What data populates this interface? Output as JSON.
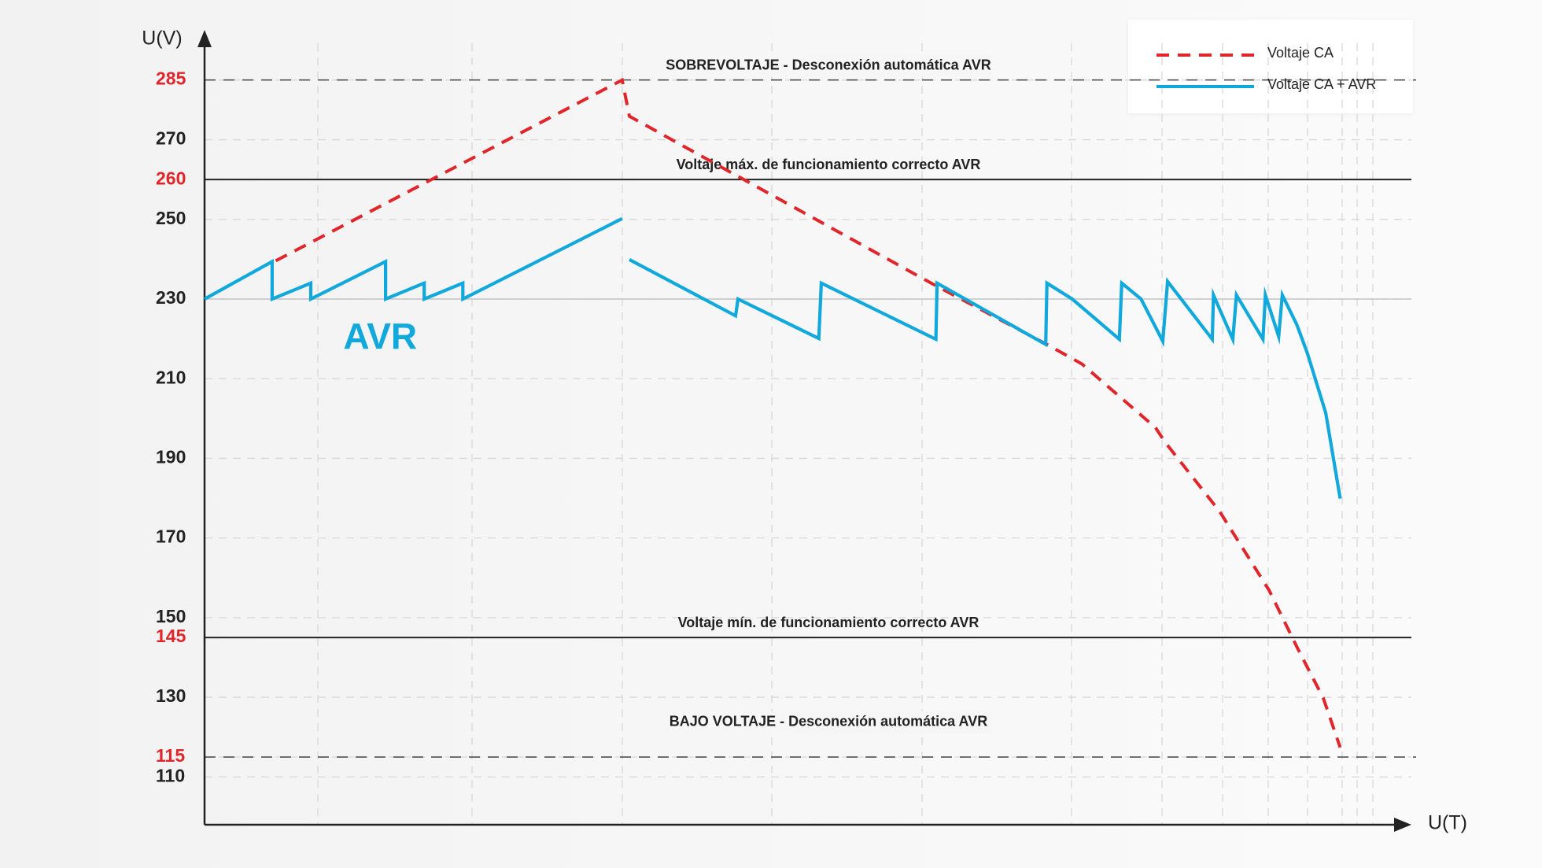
{
  "chart_data": {
    "type": "line",
    "y_axis_label": "U(V)",
    "x_axis_label": "U(T)",
    "xlim": [
      0,
      100
    ],
    "ylim": [
      98,
      296
    ],
    "yticks": [
      110,
      115,
      130,
      145,
      150,
      170,
      190,
      210,
      230,
      250,
      260,
      270,
      285
    ],
    "highlighted_yticks": [
      115,
      145,
      260,
      285
    ],
    "tick_color": "#222222",
    "highlight_tick_color": "#e0262b",
    "grid": true,
    "legend_position": "top-right",
    "annotation": {
      "text": "AVR",
      "x": 11.5,
      "y": 220,
      "color": "#11a9dc"
    },
    "reference_lines": [
      {
        "value": 285,
        "style": "dashed",
        "label": "SOBREVOLTAJE - Desconexión automática AVR"
      },
      {
        "value": 260,
        "style": "solid",
        "label": "Voltaje máx. de funcionamiento correcto AVR"
      },
      {
        "value": 230,
        "style": "light"
      },
      {
        "value": 145,
        "style": "solid",
        "label": "Voltaje mín. de funcionamiento correcto AVR"
      },
      {
        "value": 115,
        "style": "dashed",
        "label": "BAJO VOLTAJE - Desconexión automática AVR"
      }
    ],
    "series": [
      {
        "name": "Voltaje CA",
        "color": "#e0262b",
        "dashed": true,
        "x": [
          5.9,
          34.6,
          35.2,
          60.5,
          69.8,
          72.7,
          78.8,
          79.6,
          84.1,
          88.2,
          90.6,
          92.7,
          94.1
        ],
        "values": [
          239.6,
          285,
          275.9,
          233.5,
          218.6,
          213.7,
          197.7,
          194,
          176.7,
          156.9,
          142.1,
          129.8,
          117.4
        ]
      },
      {
        "name": "Voltaje CA + AVR",
        "color": "#11a9dc",
        "dashed": false,
        "x": [
          0,
          5.6,
          5.6,
          8.8,
          8.8,
          15,
          15,
          18.2,
          18.2,
          21.4,
          21.4,
          34.6,
          34.9,
          35.2,
          44,
          44.2,
          50.9,
          51.1,
          60.6,
          60.7,
          69.7,
          69.8,
          71.9,
          75.8,
          76,
          77.6,
          79.4,
          79.8,
          83.5,
          83.6,
          85.2,
          85.5,
          87.7,
          87.9,
          89,
          89.3,
          90.5,
          91.4,
          92.9,
          94.1
        ],
        "values": [
          230,
          239.4,
          230,
          234,
          230,
          239.4,
          230,
          234,
          230,
          234,
          230,
          250.2,
          null,
          239.9,
          225.8,
          230,
          220.1,
          234,
          219.9,
          234,
          218.6,
          234,
          230,
          219.9,
          234,
          230,
          219.4,
          234.4,
          219.9,
          231,
          219.9,
          231,
          219.9,
          231,
          220.6,
          231,
          223.6,
          216.2,
          201.4,
          179.9
        ]
      }
    ]
  }
}
